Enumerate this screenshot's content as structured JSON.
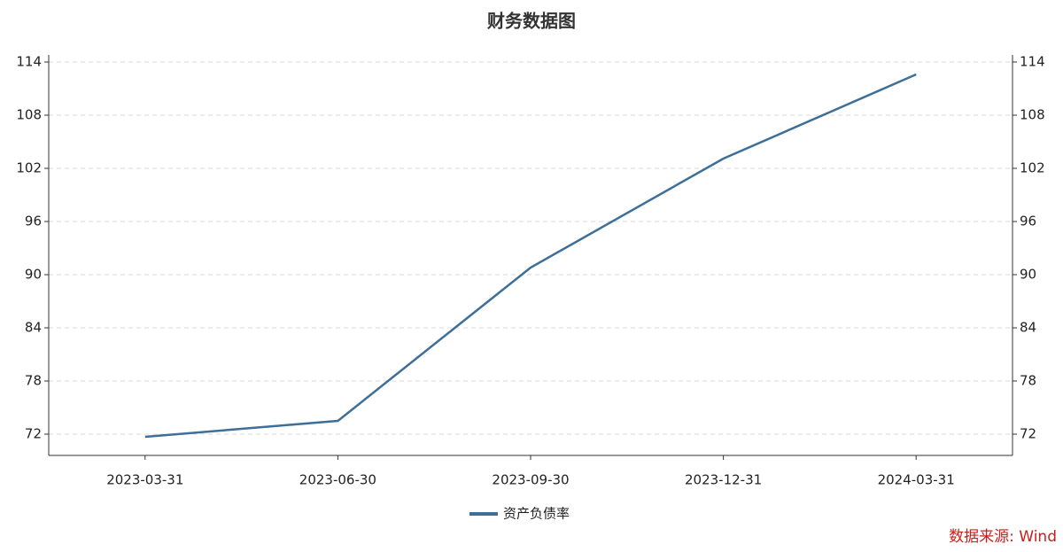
{
  "chart_data": {
    "type": "line",
    "title": "财务数据图",
    "source": "数据来源: Wind",
    "categories": [
      "2023-03-31",
      "2023-06-30",
      "2023-09-30",
      "2023-12-31",
      "2024-03-31"
    ],
    "series": [
      {
        "name": "资产负债率",
        "color": "#3d6f98",
        "values": [
          71.7,
          73.5,
          90.8,
          103.1,
          112.6
        ]
      }
    ],
    "ylim": [
      69.6,
      114.8
    ],
    "yticks": [
      72,
      78,
      84,
      90,
      96,
      102,
      108,
      114
    ],
    "y2lim": [
      69.6,
      114.8
    ],
    "y2ticks": [
      72,
      78,
      84,
      90,
      96,
      102,
      108,
      114
    ],
    "grid": true,
    "legend": "bottom"
  }
}
